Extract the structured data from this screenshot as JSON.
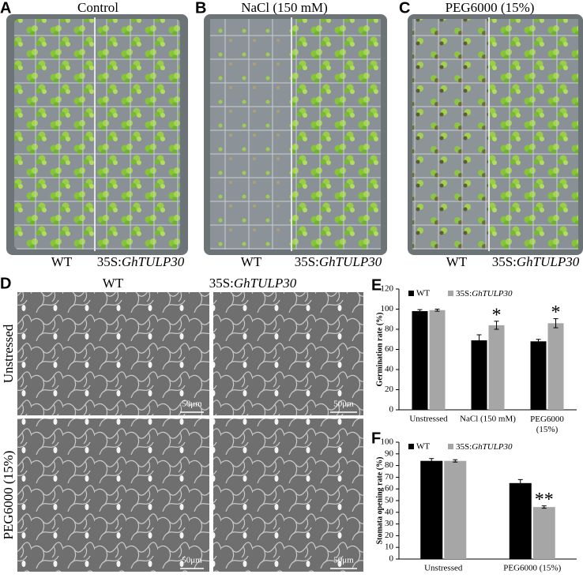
{
  "photos": {
    "A": {
      "panel": "A",
      "title": "Control",
      "left": "WT",
      "right": "35S:GhTULP30"
    },
    "B": {
      "panel": "B",
      "title": "NaCl (150 mM)",
      "left": "WT",
      "right": "35S:GhTULP30"
    },
    "C": {
      "panel": "C",
      "title": "PEG6000 (15%)",
      "left": "WT",
      "right": "35S:GhTULP30"
    },
    "D": {
      "panel": "D",
      "columns": [
        "WT",
        "35S:GhTULP30"
      ],
      "rows": [
        "Unstressed",
        "PEG6000 (15%)"
      ],
      "scale_bar": "50μm"
    }
  },
  "chart_data": [
    {
      "type": "bar",
      "panel": "E",
      "ylabel": "Germination rate (%)",
      "categories": [
        "Unstressed",
        "NaCl (150 mM)",
        "PEG6000 (15%)"
      ],
      "series": [
        {
          "name": "WT",
          "color": "#000000",
          "values": [
            98,
            69,
            68
          ],
          "errors": [
            1.5,
            5.5,
            2
          ],
          "significance": [
            null,
            null,
            null
          ]
        },
        {
          "name": "35S:GhTULP30",
          "color": "#a6a6a6",
          "values": [
            99,
            84,
            86
          ],
          "errors": [
            1,
            4,
            4.5
          ],
          "significance": [
            null,
            "*",
            "*"
          ]
        }
      ],
      "ylim": [
        0,
        120
      ],
      "yticks": [
        0,
        20,
        40,
        60,
        80,
        100,
        120
      ],
      "grid": false
    },
    {
      "type": "bar",
      "panel": "F",
      "ylabel": "Stomata opening rate (%)",
      "categories": [
        "Unstressed",
        "PEG6000 (15%)"
      ],
      "series": [
        {
          "name": "WT",
          "color": "#000000",
          "values": [
            84,
            65
          ],
          "errors": [
            2,
            3
          ],
          "significance": [
            null,
            null
          ]
        },
        {
          "name": "35S:GhTULP30",
          "color": "#a6a6a6",
          "values": [
            84,
            44.5
          ],
          "errors": [
            1,
            1
          ],
          "significance": [
            null,
            "**"
          ]
        }
      ],
      "ylim": [
        0,
        100
      ],
      "yticks": [
        0,
        10,
        20,
        30,
        40,
        50,
        60,
        70,
        80,
        90,
        100
      ],
      "grid": false
    }
  ]
}
